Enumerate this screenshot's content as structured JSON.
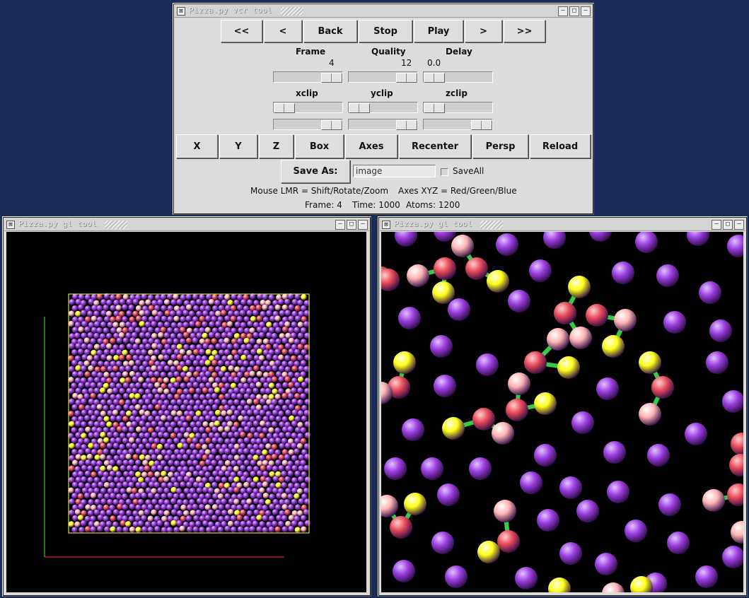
{
  "vcr": {
    "title": "Pizza.py vcr tool",
    "buttons": [
      "<<",
      "<",
      "Back",
      "Stop",
      "Play",
      ">",
      ">>"
    ],
    "labels": {
      "frame": "Frame",
      "quality": "Quality",
      "delay": "Delay",
      "xclip": "xclip",
      "yclip": "yclip",
      "zclip": "zclip"
    },
    "values": {
      "frame": "4",
      "quality": "12",
      "delay": "0.0"
    },
    "view_buttons": [
      "X",
      "Y",
      "Z",
      "Box",
      "Axes",
      "Recenter",
      "Persp",
      "Reload"
    ],
    "save_as_label": "Save As:",
    "save_file": "image",
    "save_all_label": "SaveAll",
    "mouse_help": "Mouse LMR = Shift/Rotate/Zoom",
    "axes_help": "Axes XYZ = Red/Green/Blue",
    "status": {
      "frame": "Frame: 4",
      "time": "Time: 1000",
      "atoms": "Atoms: 1200"
    }
  },
  "gl_left": {
    "title": "Pizza.py gl tool"
  },
  "gl_right": {
    "title": "Pizza.py gl tool"
  },
  "colors": {
    "desktop": "#1d2b58",
    "atom_purple": "#9b3fe0",
    "atom_red": "#e84a5a",
    "atom_pink": "#ffb3b3",
    "atom_yellow": "#ffff1a",
    "bond": "#39c94a",
    "axis_x": "#d81e1e",
    "axis_y": "#2ec42e",
    "box": "#ffff55"
  }
}
